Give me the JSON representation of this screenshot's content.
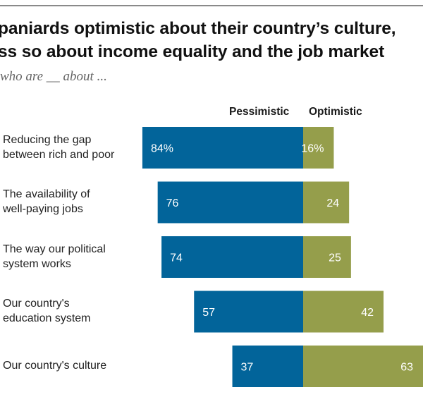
{
  "chart_data": {
    "type": "bar",
    "orientation": "horizontal-diverging",
    "title_lines": [
      "paniards optimistic about their country’s culture,",
      "ss so about income equality and the job market"
    ],
    "subtitle": "who are __ about ...",
    "legend": [
      "Pessimistic",
      "Optimistic"
    ],
    "categories": [
      [
        "Reducing the gap",
        "between rich and poor"
      ],
      [
        "The availability of",
        "well-paying jobs"
      ],
      [
        "The way our political",
        "system works"
      ],
      [
        "Our country's",
        "education system"
      ],
      [
        "Our country's culture"
      ]
    ],
    "series": [
      {
        "name": "Pessimistic",
        "color": "#02649a",
        "values": [
          84,
          76,
          74,
          57,
          37
        ],
        "labels": [
          "84%",
          "76",
          "74",
          "57",
          "37"
        ]
      },
      {
        "name": "Optimistic",
        "color": "#959e4b",
        "values": [
          16,
          24,
          25,
          42,
          63
        ],
        "labels": [
          "16%",
          "24",
          "25",
          "42",
          "63"
        ]
      }
    ],
    "xlim": [
      -100,
      100
    ],
    "grid": false,
    "legend_position": "top"
  }
}
